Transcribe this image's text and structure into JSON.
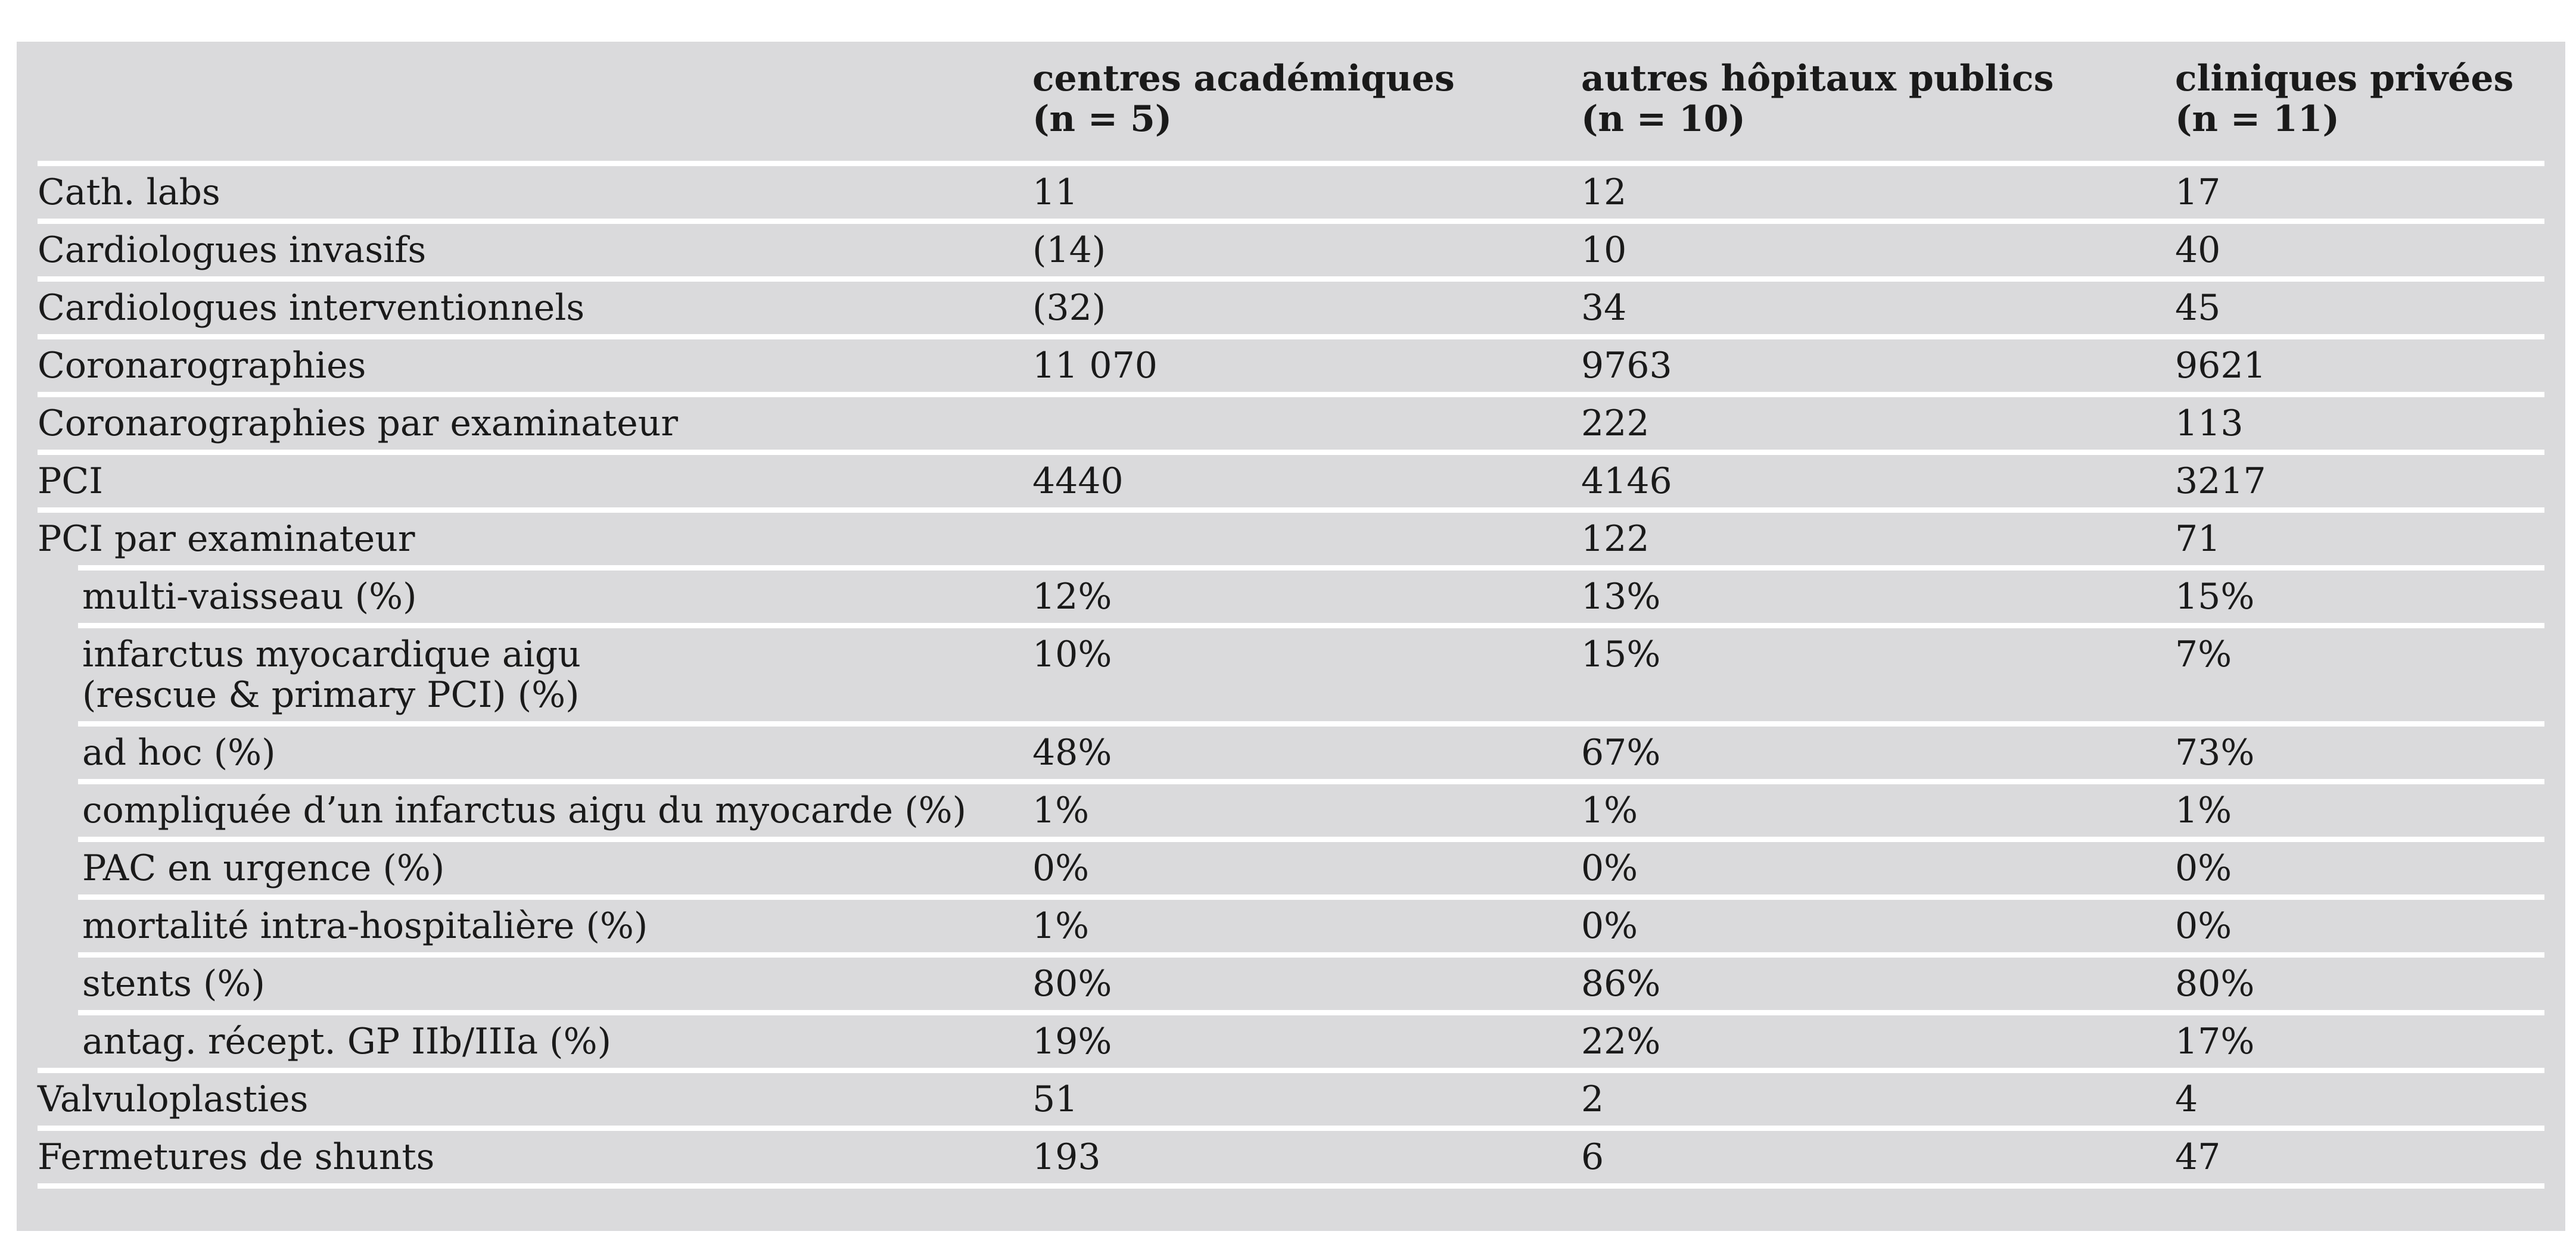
{
  "table": {
    "columns": [
      {
        "line1": "centres académiques",
        "line2": "(n = 5)"
      },
      {
        "line1": "autres hôpitaux publics",
        "line2": "(n = 10)"
      },
      {
        "line1": "cliniques privées",
        "line2": "(n = 11)"
      }
    ],
    "rows": [
      {
        "label": "Cath. labs",
        "sub": false,
        "values": [
          "11",
          "12",
          "17"
        ]
      },
      {
        "label": "Cardiologues invasifs",
        "sub": false,
        "values": [
          "(14)",
          "10",
          "40"
        ]
      },
      {
        "label": "Cardiologues interventionnels",
        "sub": false,
        "values": [
          "(32)",
          "34",
          "45"
        ]
      },
      {
        "label": "Coronarographies",
        "sub": false,
        "values": [
          "11 070",
          "9763",
          "9621"
        ]
      },
      {
        "label": "Coronarographies par examinateur",
        "sub": false,
        "values": [
          "",
          "222",
          "113"
        ]
      },
      {
        "label": "PCI",
        "sub": false,
        "values": [
          "4440",
          "4146",
          "3217"
        ]
      },
      {
        "label": "PCI par examinateur",
        "sub": false,
        "values": [
          "",
          "122",
          "71"
        ]
      },
      {
        "label": "multi-vaisseau (%)",
        "sub": true,
        "values": [
          "12%",
          "13%",
          "15%"
        ]
      },
      {
        "label": "infarctus myocardique aigu",
        "label2": "(rescue & primary PCI) (%)",
        "sub": true,
        "values": [
          "10%",
          "15%",
          "7%"
        ]
      },
      {
        "label": "ad hoc (%)",
        "sub": true,
        "values": [
          "48%",
          "67%",
          "73%"
        ]
      },
      {
        "label": "compliquée d’un infarctus aigu du myocarde (%)",
        "sub": true,
        "values": [
          "1%",
          "1%",
          "1%"
        ]
      },
      {
        "label": "PAC en urgence (%)",
        "sub": true,
        "values": [
          "0%",
          "0%",
          "0%"
        ]
      },
      {
        "label": "mortalité intra-hospitalière (%)",
        "sub": true,
        "values": [
          "1%",
          "0%",
          "0%"
        ]
      },
      {
        "label": "stents (%)",
        "sub": true,
        "values": [
          "80%",
          "86%",
          "80%"
        ]
      },
      {
        "label": "antag. récept. GP IIb/IIIa (%)",
        "sub": true,
        "values": [
          "19%",
          "22%",
          "17%"
        ]
      },
      {
        "label": "Valvuloplasties",
        "sub": false,
        "values": [
          "51",
          "2",
          "4"
        ]
      },
      {
        "label": "Fermetures de shunts",
        "sub": false,
        "values": [
          "193",
          "6",
          "47"
        ]
      }
    ],
    "colors": {
      "table_background": "#dadadc",
      "separator": "#ffffff",
      "text": "#1a1a1a"
    }
  }
}
